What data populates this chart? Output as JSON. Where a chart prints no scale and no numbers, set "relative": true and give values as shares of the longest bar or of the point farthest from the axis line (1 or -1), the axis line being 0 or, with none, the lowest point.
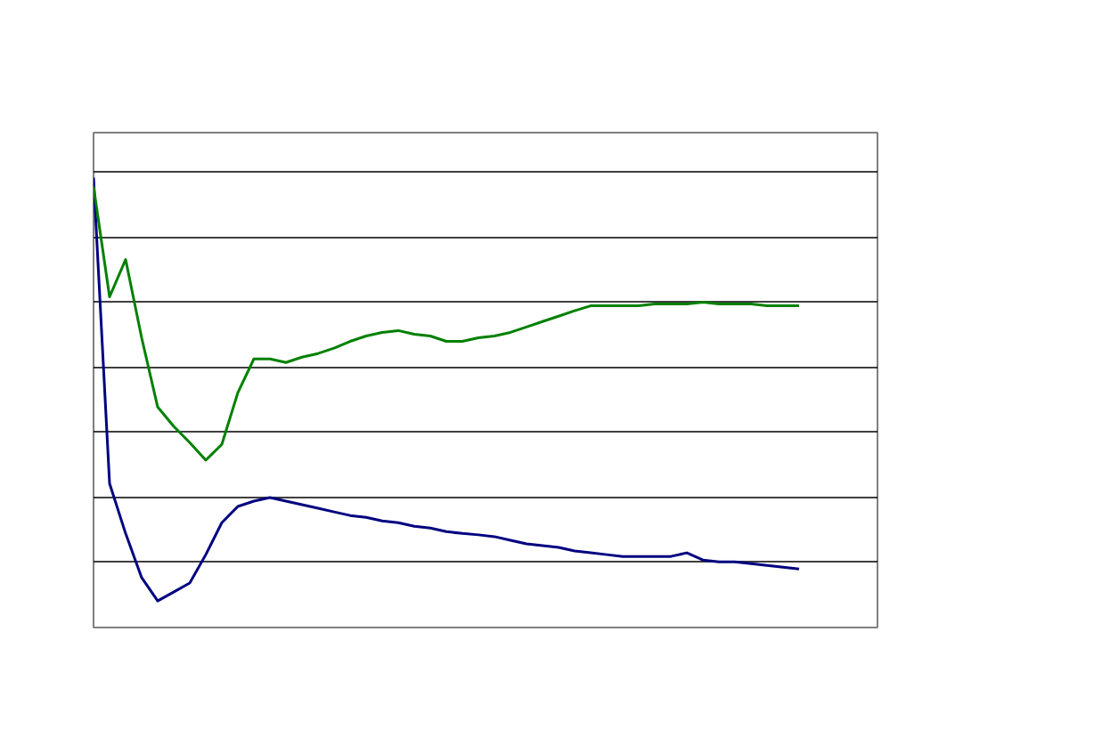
{
  "chart_data": {
    "type": "line",
    "relative": true,
    "grid": "y",
    "categories": [
      null,
      null,
      null,
      null,
      null,
      null,
      null,
      null,
      null,
      null,
      null,
      null,
      null,
      null,
      null,
      null,
      null,
      null,
      null,
      null,
      null,
      null,
      null,
      null,
      null,
      null,
      null,
      null,
      null,
      null,
      null,
      null,
      null,
      null,
      null,
      null,
      null,
      null,
      null,
      null,
      null,
      null,
      null,
      null,
      null
    ],
    "series": [
      {
        "color": "#000080",
        "values": [
          1.0,
          0.32,
          0.209,
          0.111,
          0.059,
          0.079,
          0.099,
          0.162,
          0.233,
          0.269,
          0.281,
          0.289,
          0.281,
          0.273,
          0.265,
          0.257,
          0.249,
          0.245,
          0.237,
          0.233,
          0.225,
          0.221,
          0.213,
          0.209,
          0.206,
          0.202,
          0.194,
          0.186,
          0.182,
          0.178,
          0.17,
          0.166,
          0.162,
          0.158,
          0.158,
          0.158,
          0.158,
          0.166,
          0.15,
          0.146,
          0.146,
          0.142,
          0.138,
          0.134,
          0.13
        ]
      },
      {
        "color": "#008000",
        "values": [
          0.98,
          0.735,
          0.818,
          0.644,
          0.49,
          0.447,
          0.411,
          0.372,
          0.407,
          0.522,
          0.597,
          0.597,
          0.589,
          0.601,
          0.609,
          0.621,
          0.636,
          0.648,
          0.656,
          0.66,
          0.652,
          0.648,
          0.636,
          0.636,
          0.644,
          0.648,
          0.656,
          0.668,
          0.68,
          0.692,
          0.704,
          0.715,
          0.715,
          0.715,
          0.715,
          0.719,
          0.719,
          0.719,
          0.723,
          0.719,
          0.719,
          0.719,
          0.715,
          0.715,
          0.715
        ]
      }
    ]
  }
}
